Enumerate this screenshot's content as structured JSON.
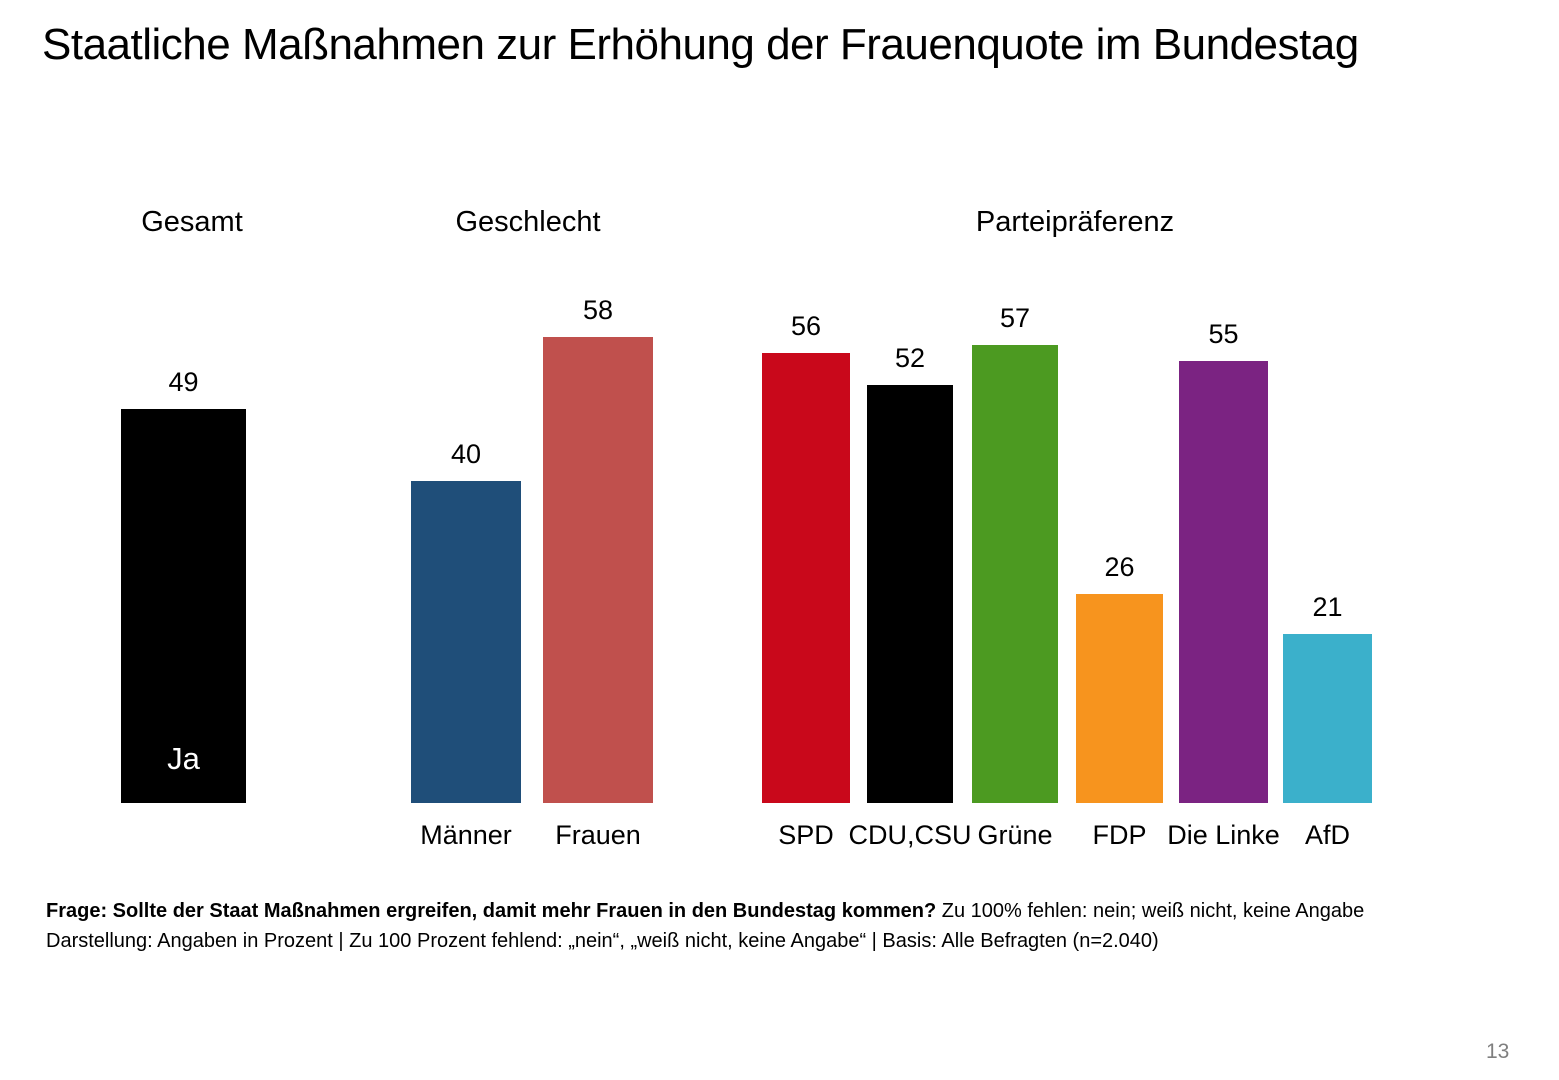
{
  "page": {
    "page_number": "13"
  },
  "chart_data": {
    "type": "bar",
    "title": "Staatliche Maßnahmen zur Erhöhung der Frauenquote im Bundestag",
    "unit": "Prozent",
    "ylim": [
      0,
      62
    ],
    "grid": false,
    "value_labels_position": "above bars",
    "groups": [
      {
        "label": "Gesamt",
        "bars": [
          {
            "category": "",
            "inner_label": "Ja",
            "value": 49,
            "color": "#000000",
            "inner_label_color": "#FFFFFF"
          }
        ]
      },
      {
        "label": "Geschlecht",
        "bars": [
          {
            "category": "Männer",
            "value": 40,
            "color": "#1F4E79"
          },
          {
            "category": "Frauen",
            "value": 58,
            "color": "#C0504D"
          }
        ]
      },
      {
        "label": "Parteipräferenz",
        "bars": [
          {
            "category": "SPD",
            "value": 56,
            "color": "#C9081B"
          },
          {
            "category": "CDU,CSU",
            "value": 52,
            "color": "#000000"
          },
          {
            "category": "Grüne",
            "value": 57,
            "color": "#4C9A21"
          },
          {
            "category": "FDP",
            "value": 26,
            "color": "#F7941E"
          },
          {
            "category": "Die Linke",
            "value": 55,
            "color": "#7B2382"
          },
          {
            "category": "AfD",
            "value": 21,
            "color": "#3BB0CB"
          }
        ]
      }
    ]
  },
  "footnote": {
    "line1_bold": "Frage: Sollte der Staat Maßnahmen ergreifen, damit mehr Frauen in den Bundestag kommen?",
    "line1_rest": "Zu 100% fehlen: nein; weiß nicht, keine Angabe",
    "line2": "Darstellung: Angaben in Prozent | Zu 100 Prozent fehlend: „nein“, „weiß nicht, keine Angabe“ | Basis: Alle Befragten (n=2.040)"
  }
}
